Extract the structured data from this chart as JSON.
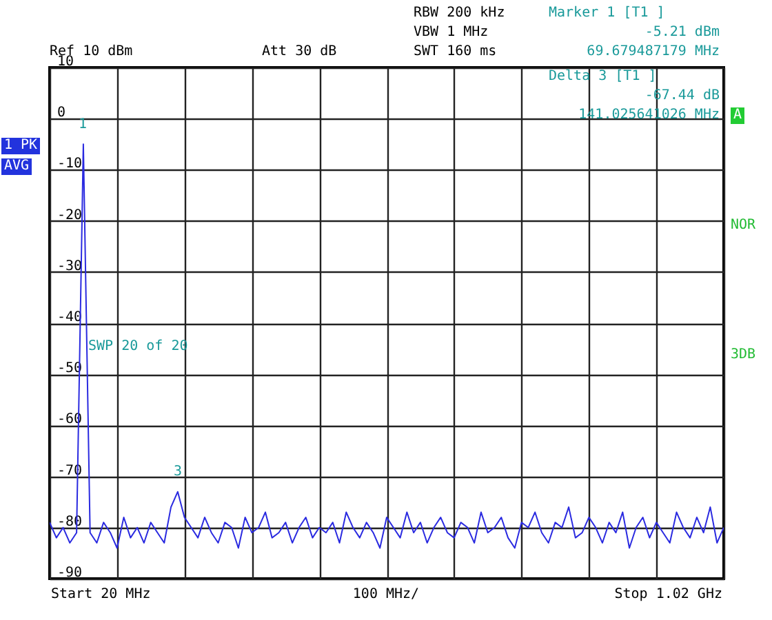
{
  "chart_data": {
    "type": "line",
    "categories": [
      null,
      null,
      null,
      null,
      null,
      null,
      null,
      null,
      null,
      null,
      null,
      null,
      null,
      null,
      null,
      null,
      null,
      null,
      null,
      null,
      null,
      null,
      null,
      null,
      null,
      null,
      null,
      null,
      null,
      null,
      null,
      null,
      null,
      null,
      null,
      null,
      null,
      null,
      null,
      null,
      null,
      null,
      null,
      null,
      null,
      null,
      null,
      null,
      null,
      null,
      null,
      null,
      null,
      null,
      null,
      null,
      null,
      null,
      null,
      null,
      null,
      null,
      null,
      null,
      null,
      null,
      null,
      null,
      null,
      null,
      null,
      null,
      null,
      null,
      null,
      null,
      null,
      null,
      null,
      null,
      null,
      null,
      null,
      null,
      null,
      null,
      null,
      null,
      null,
      null,
      null,
      null,
      null,
      null,
      null,
      null,
      null,
      null,
      null,
      null,
      null
    ],
    "ylim": [
      -90,
      10
    ],
    "yticks": [
      10,
      0,
      -10,
      -20,
      -30,
      -40,
      -50,
      -60,
      -70,
      -80,
      -90
    ],
    "grid": true,
    "series": [
      {
        "color": "#2a2ae0",
        "values": [
          -79,
          -82,
          -80,
          -83,
          -81,
          -5,
          -81,
          -83,
          -79,
          -81,
          -84,
          -78,
          -82,
          -80,
          -83,
          -79,
          -81,
          -83,
          -76,
          -73,
          -78,
          -80,
          -82,
          -78,
          -81,
          -83,
          -79,
          -80,
          -84,
          -78,
          -81,
          -80,
          -77,
          -82,
          -81,
          -79,
          -83,
          -80,
          -78,
          -82,
          -80,
          -81,
          -79,
          -83,
          -77,
          -80,
          -82,
          -79,
          -81,
          -84,
          -78,
          -80,
          -82,
          -77,
          -81,
          -79,
          -83,
          -80,
          -78,
          -81,
          -82,
          -79,
          -80,
          -83,
          -77,
          -81,
          -80,
          -78,
          -82,
          -84,
          -79,
          -80,
          -77,
          -81,
          -83,
          -79,
          -80,
          -76,
          -82,
          -81,
          -78,
          -80,
          -83,
          -79,
          -81,
          -77,
          -84,
          -80,
          -78,
          -82,
          -79,
          -81,
          -83,
          -77,
          -80,
          -82,
          -78,
          -81,
          -76,
          -83,
          -80
        ],
        "line_style": "solid"
      }
    ],
    "annotations": [
      "RBW 200 kHz",
      "VBW 1 MHz",
      "SWT 160 ms",
      "Ref 10 dBm",
      "Att 30 dB",
      "Marker 1 [T1 ]",
      "-5.21 dBm",
      "69.679487179 MHz",
      "Delta 3 [T1 ]",
      "-67.44 dB",
      "141.025641026 MHz",
      "1 PK",
      "AVG",
      "A",
      "NOR",
      "3DB",
      "SWP 20 of 20",
      "Start 20 MHz",
      "100 MHz/",
      "Stop 1.02 GHz",
      "1",
      "3"
    ]
  }
}
